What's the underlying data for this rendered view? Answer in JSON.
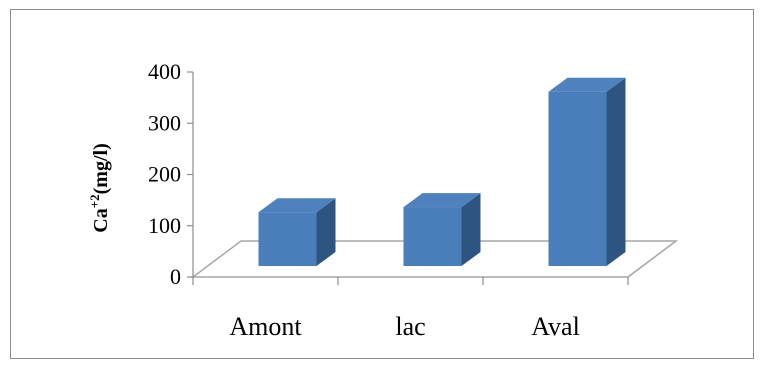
{
  "chart_data": {
    "type": "bar",
    "style": "3d",
    "categories": [
      "Amont",
      "lac",
      "Aval"
    ],
    "values": [
      105,
      115,
      340
    ],
    "ylabel_base": "Ca",
    "ylabel_sup": "+2",
    "ylabel_unit": "(mg/l)",
    "ylim": [
      0,
      400
    ],
    "yticks": [
      "0",
      "100",
      "200",
      "300",
      "400"
    ],
    "grid": false,
    "legend": "none",
    "colors": {
      "front": "#4a7ebb",
      "side": "#2e5581",
      "top": "#4f81bd",
      "floor": "#a6a6a6"
    }
  }
}
